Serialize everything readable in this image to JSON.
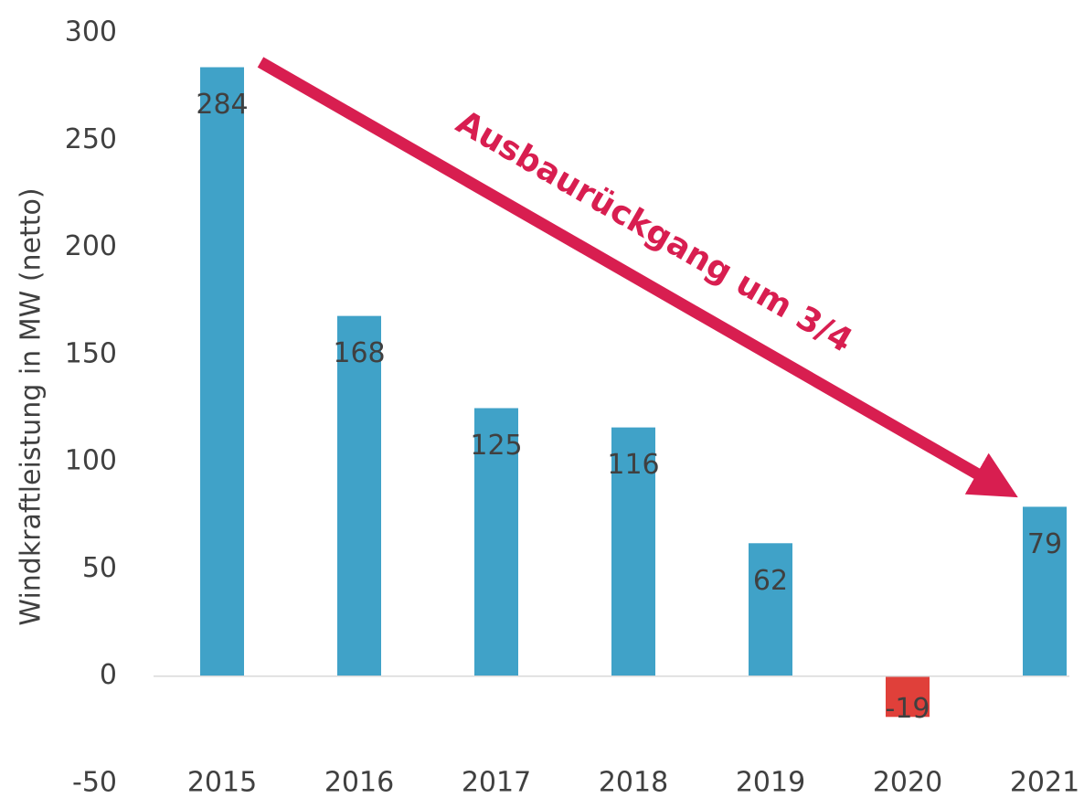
{
  "chart_data": {
    "type": "bar",
    "y_label": "Windkraftleistung in MW (netto)",
    "annotation": "Ausbaurückgang um 3/4",
    "categories": [
      "2015",
      "2016",
      "2017",
      "2018",
      "2019",
      "2020",
      "2021"
    ],
    "values": [
      284,
      168,
      125,
      116,
      62,
      -19,
      79
    ],
    "colors": [
      "#40a2c8",
      "#40a2c8",
      "#40a2c8",
      "#40a2c8",
      "#40a2c8",
      "#e0403a",
      "#40a2c8"
    ],
    "ylim": [
      -50,
      300
    ],
    "yticks": [
      -50,
      0,
      50,
      100,
      150,
      200,
      250,
      300
    ],
    "grid": false
  }
}
